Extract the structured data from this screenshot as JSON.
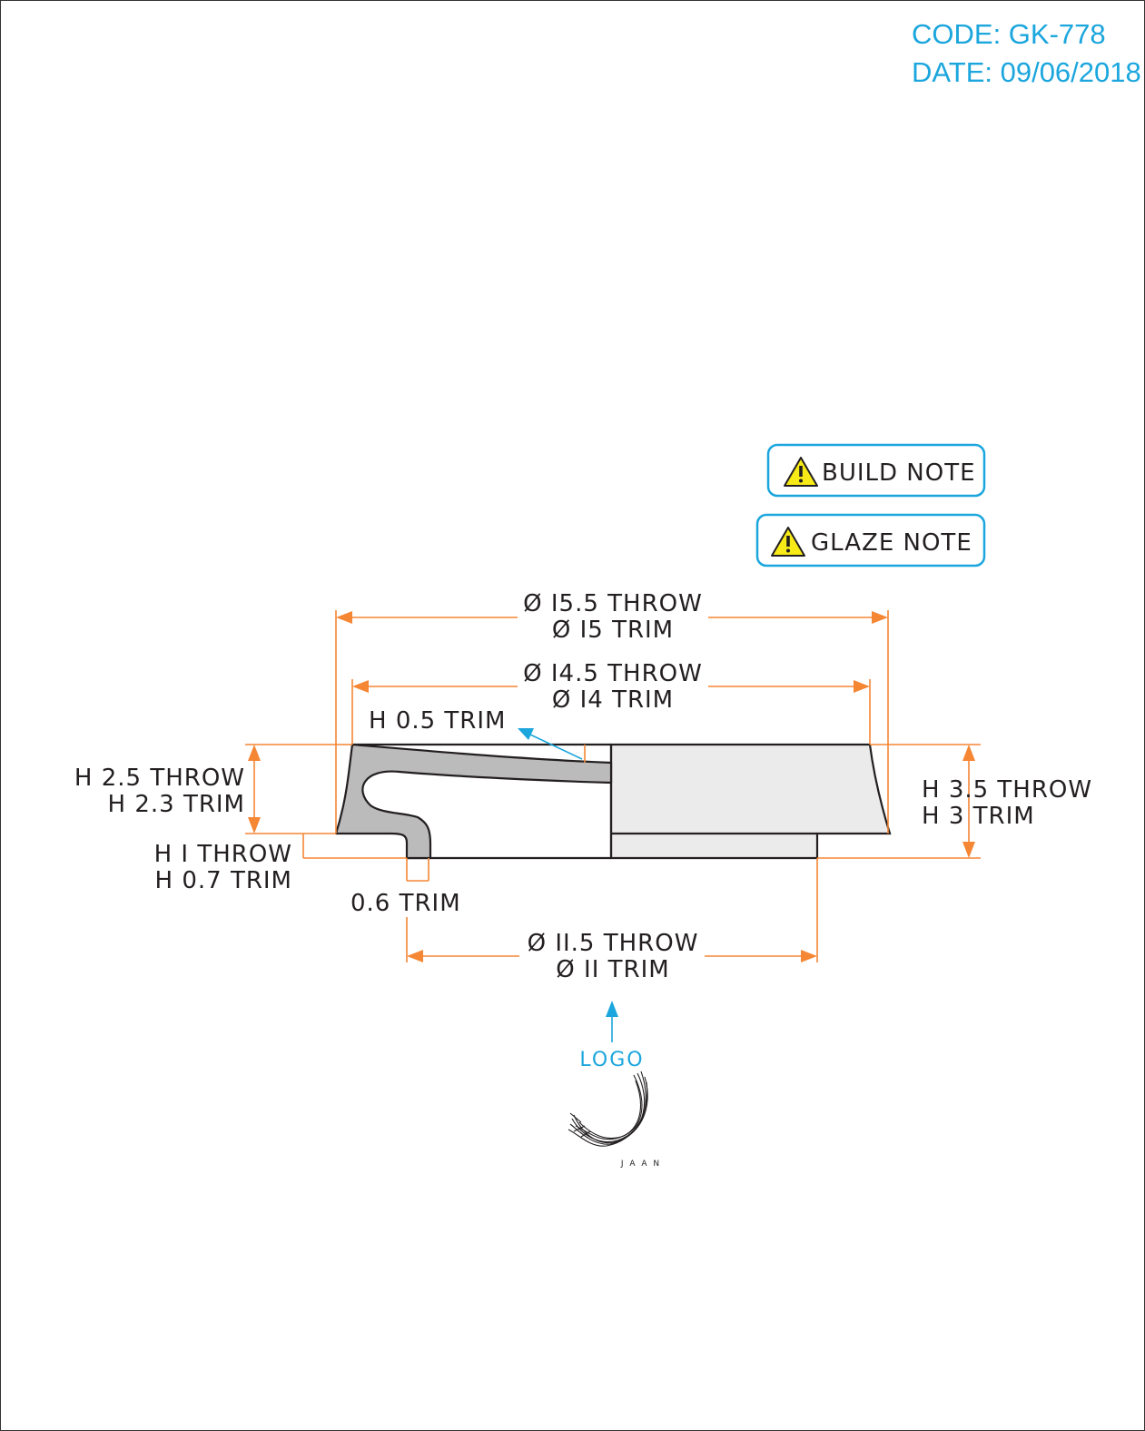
{
  "header": {
    "code": "CODE: GK-778",
    "date": "DATE: 09/06/2018"
  },
  "notes": {
    "build_note": "BUILD NOTE",
    "glaze_note": "GLAZE NOTE",
    "icon": "warning-triangle-icon"
  },
  "dimensions": {
    "outer_diameter_throw": "Ø I5.5 THROW",
    "outer_diameter_trim": "Ø I5 TRIM",
    "inner_diameter_throw": "Ø I4.5 THROW",
    "inner_diameter_trim": "Ø I4 TRIM",
    "lid_thickness_trim": "H 0.5 TRIM",
    "rim_height_throw": "H 2.5 THROW",
    "rim_height_trim": "H 2.3 TRIM",
    "foot_height_throw": "H I THROW",
    "foot_height_trim": "H 0.7 TRIM",
    "foot_width_trim": "0.6 TRIM",
    "total_height_throw": "H 3.5 THROW",
    "total_height_trim": "H 3 TRIM",
    "foot_diameter_throw": "Ø II.5 THROW",
    "foot_diameter_trim": "Ø II TRIM"
  },
  "logo": {
    "label": "LOGO",
    "brand": "J A A N"
  },
  "colors": {
    "dimension": "#f58634",
    "callout": "#1ba6dd",
    "section_fill": "#bbbbbb",
    "body_fill": "#ebebeb",
    "warning": "#f7ea16"
  }
}
